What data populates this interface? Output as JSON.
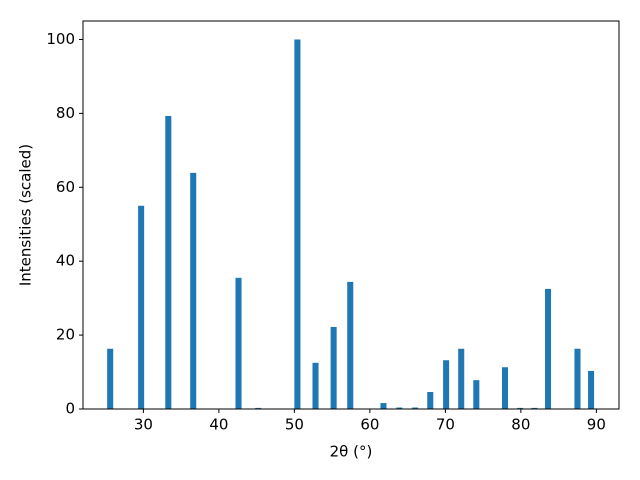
{
  "chart_data": {
    "type": "bar",
    "x_label": "2θ (°)",
    "y_label": "Intensities (scaled)",
    "x": [
      25.6,
      29.7,
      33.3,
      36.6,
      42.6,
      45.2,
      50.4,
      52.8,
      55.2,
      57.4,
      61.8,
      63.9,
      66.0,
      68.0,
      70.1,
      72.1,
      74.1,
      77.9,
      79.9,
      81.8,
      83.6,
      87.5,
      89.3
    ],
    "values": [
      16.3,
      55,
      79.3,
      63.9,
      35.5,
      0.3,
      100,
      12.5,
      22.2,
      34.4,
      1.6,
      0.4,
      0.4,
      4.6,
      13.2,
      16.3,
      7.8,
      11.3,
      0.3,
      0.3,
      32.5,
      16.3,
      10.3
    ],
    "color": "#1f77b4",
    "xlim": [
      22,
      93
    ],
    "ylim": [
      0,
      105
    ],
    "xticks": [
      30,
      40,
      50,
      60,
      70,
      80,
      90
    ],
    "yticks": [
      0,
      20,
      40,
      60,
      80,
      100
    ]
  }
}
